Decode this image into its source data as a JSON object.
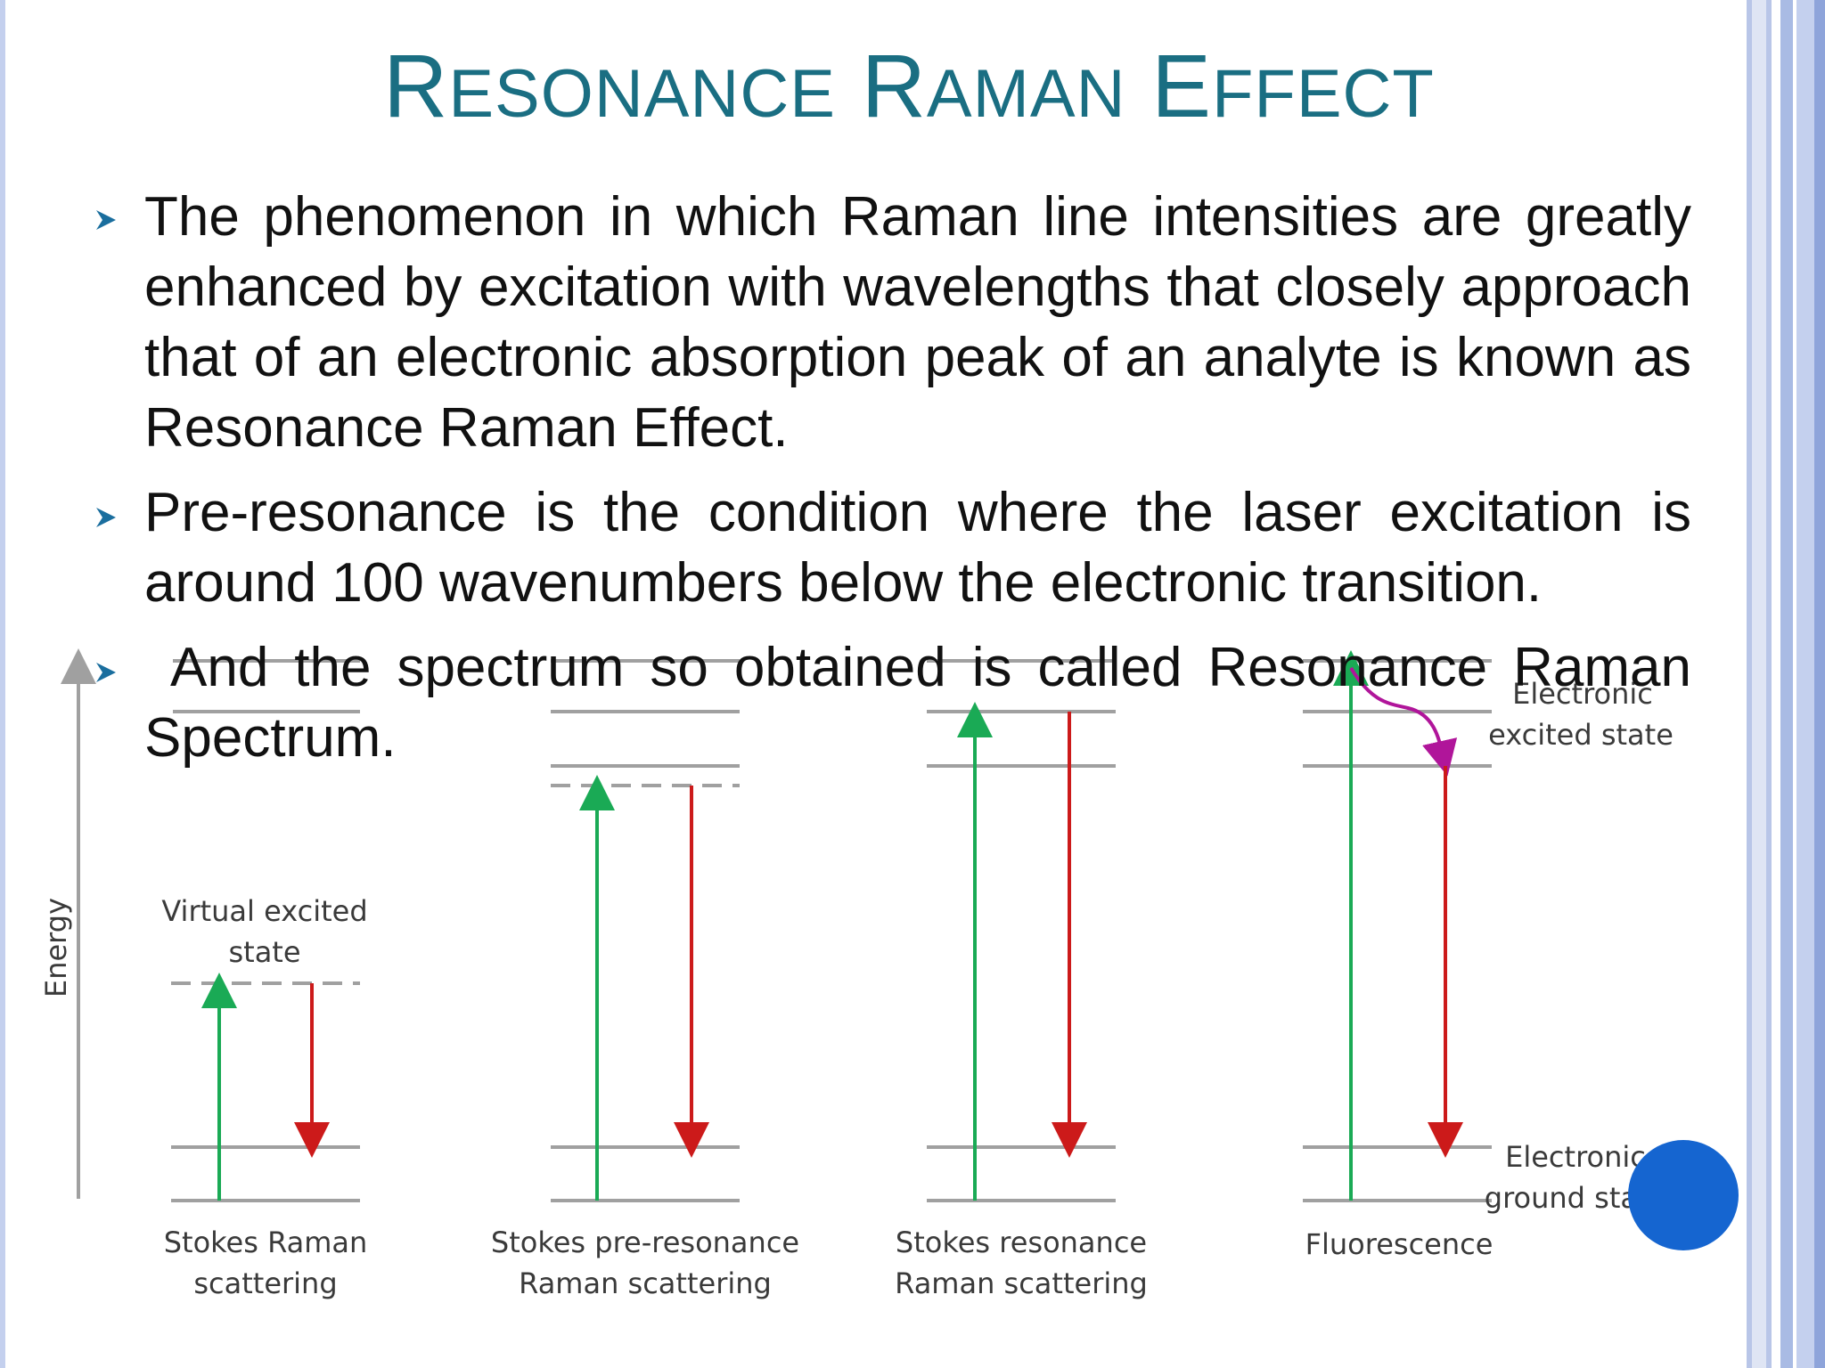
{
  "slide": {
    "title_words": [
      {
        "cap": "R",
        "rest": "ESONANCE"
      },
      {
        "cap": "R",
        "rest": "AMAN"
      },
      {
        "cap": "E",
        "rest": "FFECT"
      }
    ],
    "bullets": [
      "The phenomenon in which Raman line intensities are greatly enhanced by excitation with wavelengths that closely approach that of an electronic absorption peak of an analyte is known as Resonance Raman Effect.",
      "Pre-resonance is the condition where the laser excitation is around 100 wavenumbers below the electronic transition.",
      " And the spectrum so obtained is called Resonance Raman Spectrum."
    ]
  },
  "diagram": {
    "axis_label": "Energy",
    "virtual_state_label": [
      "Virtual excited",
      "state"
    ],
    "electronic_excited_label": [
      "Electronic",
      "excited state"
    ],
    "electronic_ground_label": [
      "Electronic",
      "ground state"
    ],
    "panels": [
      {
        "caption": [
          "Stokes Raman",
          "scattering"
        ]
      },
      {
        "caption": [
          "Stokes pre-resonance",
          "Raman scattering"
        ]
      },
      {
        "caption": [
          "Stokes resonance",
          "Raman scattering"
        ]
      },
      {
        "caption": [
          "Fluorescence",
          ""
        ]
      }
    ],
    "colors": {
      "excitation": "#1aaa55",
      "emission": "#cc1a1a",
      "relaxation": "#b0159a",
      "level": "#a0a0a0"
    }
  },
  "colors": {
    "title": "#1a6e82",
    "bullet_arrow": "#1a6e9e",
    "page_dot": "#1565d0"
  }
}
